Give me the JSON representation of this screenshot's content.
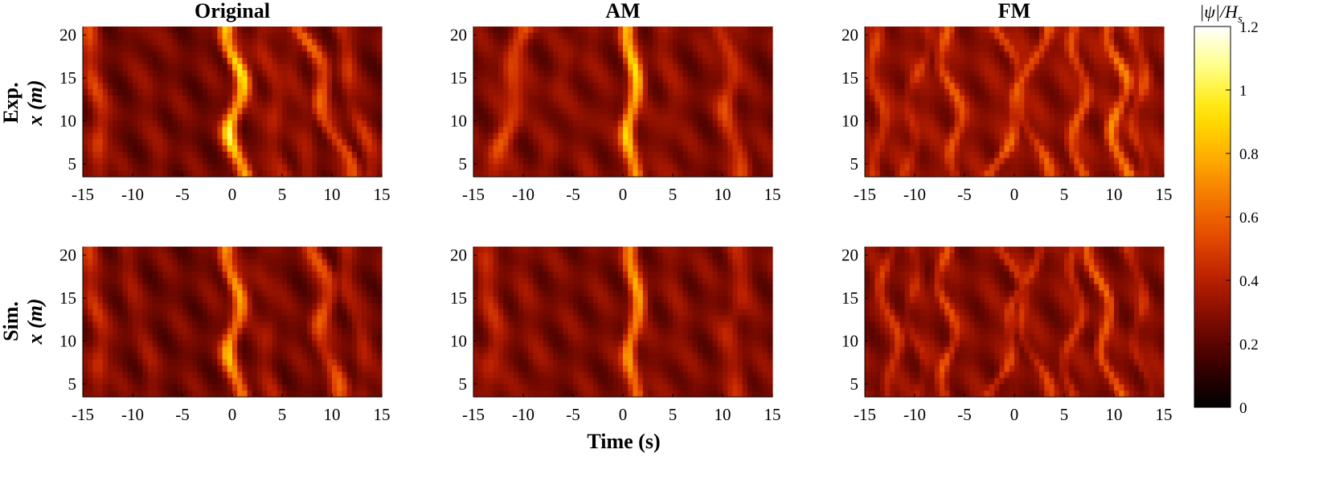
{
  "colors": {
    "colormap": [
      "#000000",
      "#3a0000",
      "#7a0a00",
      "#b81e00",
      "#e44a00",
      "#f57a00",
      "#ffb200",
      "#ffe600",
      "#ffff80",
      "#ffffff"
    ],
    "axis": "#000000",
    "background": "#ffffff"
  },
  "chart_data": {
    "type": "heatmap",
    "colormap": "hot",
    "columns": [
      "Original",
      "AM",
      "FM"
    ],
    "rows": [
      {
        "label_line1": "Exp.",
        "label_line2": "x (m)"
      },
      {
        "label_line1": "Sim.",
        "label_line2": "x (m)"
      }
    ],
    "xlabel": "Time (s)",
    "xlim": [
      -15,
      15
    ],
    "xticks": [
      "-15",
      "-10",
      "-5",
      "0",
      "5",
      "10",
      "15"
    ],
    "ylim": [
      3.5,
      21
    ],
    "yticks": [
      "5",
      "10",
      "15",
      "20"
    ],
    "colorbar": {
      "label": "|ψ|/H",
      "label_sub": "s",
      "min": 0,
      "max": 1.2,
      "ticks": [
        "0",
        "0.2",
        "0.4",
        "0.6",
        "0.8",
        "1",
        "1.2"
      ]
    },
    "panels": [
      {
        "column": "Original",
        "row": "Exp.",
        "background": 0.24,
        "ridges": [
          {
            "t_at_x4": 0.6,
            "t_at_x21": 0.1,
            "peak": 1.0,
            "width": 0.75,
            "wiggle": 0.8
          },
          {
            "t_at_x4": -13,
            "t_at_x21": -14.5,
            "peak": 0.5,
            "width": 0.9,
            "wiggle": 0.3
          },
          {
            "t_at_x4": -7,
            "t_at_x21": -9,
            "peak": 0.3,
            "width": 1.0,
            "wiggle": 0.3
          },
          {
            "t_at_x4": 11.5,
            "t_at_x21": 7,
            "peak": 0.58,
            "width": 0.8,
            "wiggle": 0.8
          },
          {
            "t_at_x4": 5,
            "t_at_x21": 3,
            "peak": 0.42,
            "width": 0.9,
            "wiggle": 0.4
          },
          {
            "t_at_x4": 8,
            "t_at_x21": 6,
            "peak": 0.35,
            "width": 0.9,
            "wiggle": 0.4
          },
          {
            "t_at_x4": 13.8,
            "t_at_x21": 10.5,
            "peak": 0.45,
            "width": 0.8,
            "wiggle": 0.4
          }
        ]
      },
      {
        "column": "AM",
        "row": "Exp.",
        "background": 0.26,
        "ridges": [
          {
            "t_at_x4": 0.9,
            "t_at_x21": 0.9,
            "peak": 0.95,
            "width": 0.7,
            "wiggle": 0.5
          },
          {
            "t_at_x4": -12.5,
            "t_at_x21": -10,
            "peak": 0.55,
            "width": 1.0,
            "wiggle": 0.6
          },
          {
            "t_at_x4": -8,
            "t_at_x21": -5,
            "peak": 0.32,
            "width": 1.0,
            "wiggle": 0.4
          },
          {
            "t_at_x4": 11.5,
            "t_at_x21": 10,
            "peak": 0.52,
            "width": 0.9,
            "wiggle": 0.6
          },
          {
            "t_at_x4": 5,
            "t_at_x21": 4,
            "peak": 0.34,
            "width": 1.0,
            "wiggle": 0.4
          },
          {
            "t_at_x4": -3,
            "t_at_x21": -3.5,
            "peak": 0.3,
            "width": 1.0,
            "wiggle": 0.3
          }
        ]
      },
      {
        "column": "FM",
        "row": "Exp.",
        "background": 0.3,
        "ridges": [
          {
            "t_at_x4": 10.7,
            "t_at_x21": 10.2,
            "peak": 0.72,
            "width": 0.6,
            "wiggle": 0.9
          },
          {
            "t_at_x4": -5.5,
            "t_at_x21": -7,
            "peak": 0.58,
            "width": 0.6,
            "wiggle": 0.8
          },
          {
            "t_at_x4": -2,
            "t_at_x21": 3,
            "peak": 0.6,
            "width": 0.6,
            "wiggle": 0.6
          },
          {
            "t_at_x4": 3,
            "t_at_x21": -1.5,
            "peak": 0.55,
            "width": 0.6,
            "wiggle": 0.6
          },
          {
            "t_at_x4": 6.5,
            "t_at_x21": 6.5,
            "peak": 0.6,
            "width": 0.6,
            "wiggle": 0.8
          },
          {
            "t_at_x4": -13.5,
            "t_at_x21": -14,
            "peak": 0.5,
            "width": 0.6,
            "wiggle": 0.6
          },
          {
            "t_at_x4": -11,
            "t_at_x21": -9,
            "peak": 0.45,
            "width": 0.6,
            "wiggle": 0.7
          },
          {
            "t_at_x4": 12.5,
            "t_at_x21": 12.5,
            "peak": 0.5,
            "width": 0.6,
            "wiggle": 0.7
          }
        ]
      },
      {
        "column": "Original",
        "row": "Sim.",
        "background": 0.24,
        "ridges": [
          {
            "t_at_x4": 0.4,
            "t_at_x21": 0.0,
            "peak": 0.82,
            "width": 0.75,
            "wiggle": 0.7
          },
          {
            "t_at_x4": -13,
            "t_at_x21": -14.5,
            "peak": 0.45,
            "width": 0.9,
            "wiggle": 0.3
          },
          {
            "t_at_x4": -8,
            "t_at_x21": -11,
            "peak": 0.32,
            "width": 0.9,
            "wiggle": 0.3
          },
          {
            "t_at_x4": 10,
            "t_at_x21": 8.5,
            "peak": 0.55,
            "width": 0.9,
            "wiggle": 0.8
          },
          {
            "t_at_x4": 4,
            "t_at_x21": 3,
            "peak": 0.35,
            "width": 0.9,
            "wiggle": 0.4
          },
          {
            "t_at_x4": 13.5,
            "t_at_x21": 11,
            "peak": 0.38,
            "width": 0.8,
            "wiggle": 0.4
          }
        ]
      },
      {
        "column": "AM",
        "row": "Sim.",
        "background": 0.26,
        "ridges": [
          {
            "t_at_x4": 1.0,
            "t_at_x21": 1.2,
            "peak": 0.8,
            "width": 0.7,
            "wiggle": 0.5
          },
          {
            "t_at_x4": -13,
            "t_at_x21": -13.5,
            "peak": 0.42,
            "width": 1.0,
            "wiggle": 0.4
          },
          {
            "t_at_x4": -9,
            "t_at_x21": -10,
            "peak": 0.3,
            "width": 1.0,
            "wiggle": 0.4
          },
          {
            "t_at_x4": 11,
            "t_at_x21": 11.5,
            "peak": 0.4,
            "width": 1.0,
            "wiggle": 0.5
          },
          {
            "t_at_x4": 5,
            "t_at_x21": 5.5,
            "peak": 0.3,
            "width": 1.0,
            "wiggle": 0.4
          }
        ]
      },
      {
        "column": "FM",
        "row": "Sim.",
        "background": 0.28,
        "ridges": [
          {
            "t_at_x4": 10,
            "t_at_x21": 8,
            "peak": 0.62,
            "width": 0.55,
            "wiggle": 0.8
          },
          {
            "t_at_x4": -6.5,
            "t_at_x21": -7,
            "peak": 0.55,
            "width": 0.55,
            "wiggle": 0.8
          },
          {
            "t_at_x4": -2,
            "t_at_x21": 2,
            "peak": 0.5,
            "width": 0.55,
            "wiggle": 0.7
          },
          {
            "t_at_x4": 3,
            "t_at_x21": -1,
            "peak": 0.48,
            "width": 0.55,
            "wiggle": 0.7
          },
          {
            "t_at_x4": 5.5,
            "t_at_x21": 6.5,
            "peak": 0.5,
            "width": 0.55,
            "wiggle": 0.8
          },
          {
            "t_at_x4": -12,
            "t_at_x21": -13,
            "peak": 0.48,
            "width": 0.55,
            "wiggle": 0.8
          },
          {
            "t_at_x4": -9.5,
            "t_at_x21": -10.5,
            "peak": 0.4,
            "width": 0.55,
            "wiggle": 0.7
          },
          {
            "t_at_x4": 13,
            "t_at_x21": 12,
            "peak": 0.42,
            "width": 0.55,
            "wiggle": 0.7
          }
        ]
      }
    ]
  }
}
